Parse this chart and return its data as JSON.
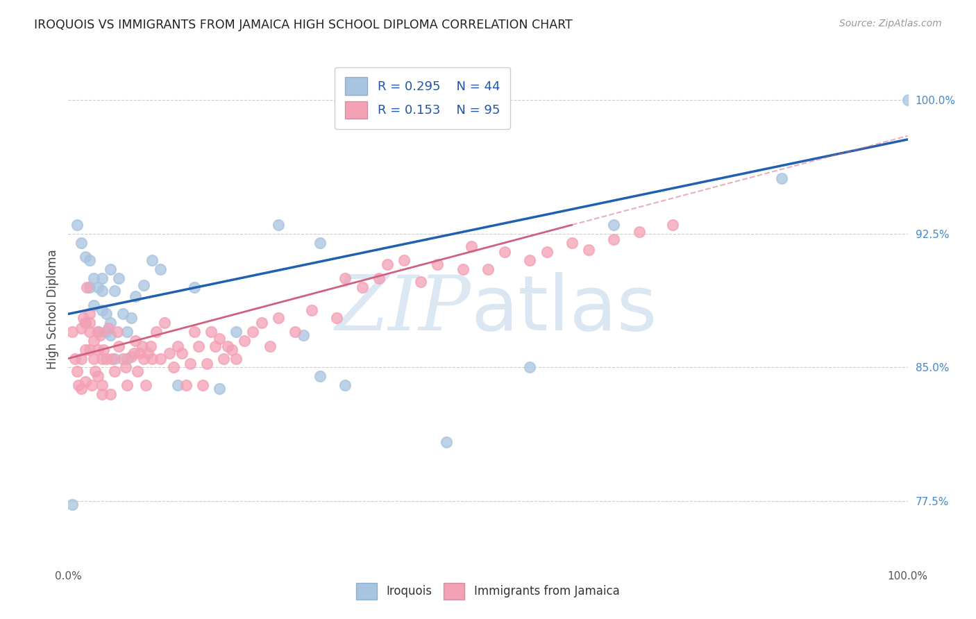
{
  "title": "IROQUOIS VS IMMIGRANTS FROM JAMAICA HIGH SCHOOL DIPLOMA CORRELATION CHART",
  "source": "Source: ZipAtlas.com",
  "ylabel": "High School Diploma",
  "right_yticks": [
    "77.5%",
    "85.0%",
    "92.5%",
    "100.0%"
  ],
  "right_ytick_vals": [
    0.775,
    0.85,
    0.925,
    1.0
  ],
  "legend_blue_r": "R = 0.295",
  "legend_blue_n": "N = 44",
  "legend_pink_r": "R = 0.153",
  "legend_pink_n": "N = 95",
  "blue_color": "#a8c4e0",
  "pink_color": "#f4a0b5",
  "blue_line_color": "#2060b0",
  "pink_line_color": "#d06080",
  "blue_scatter_x": [
    0.005,
    0.01,
    0.015,
    0.02,
    0.02,
    0.025,
    0.025,
    0.03,
    0.03,
    0.035,
    0.035,
    0.04,
    0.04,
    0.04,
    0.045,
    0.045,
    0.05,
    0.05,
    0.05,
    0.055,
    0.055,
    0.06,
    0.065,
    0.07,
    0.07,
    0.075,
    0.08,
    0.09,
    0.1,
    0.11,
    0.13,
    0.15,
    0.18,
    0.2,
    0.25,
    0.28,
    0.3,
    0.3,
    0.33,
    0.45,
    0.55,
    0.65,
    0.85,
    1.0
  ],
  "blue_scatter_y": [
    0.773,
    0.93,
    0.92,
    0.912,
    0.875,
    0.91,
    0.895,
    0.9,
    0.885,
    0.895,
    0.87,
    0.893,
    0.9,
    0.882,
    0.88,
    0.87,
    0.875,
    0.868,
    0.905,
    0.893,
    0.855,
    0.9,
    0.88,
    0.87,
    0.855,
    0.878,
    0.89,
    0.896,
    0.91,
    0.905,
    0.84,
    0.895,
    0.838,
    0.87,
    0.93,
    0.868,
    0.845,
    0.92,
    0.84,
    0.808,
    0.85,
    0.93,
    0.956,
    1.0
  ],
  "pink_scatter_x": [
    0.005,
    0.008,
    0.01,
    0.012,
    0.015,
    0.015,
    0.015,
    0.018,
    0.02,
    0.02,
    0.02,
    0.022,
    0.025,
    0.025,
    0.025,
    0.025,
    0.028,
    0.03,
    0.03,
    0.032,
    0.035,
    0.035,
    0.035,
    0.038,
    0.04,
    0.04,
    0.04,
    0.042,
    0.045,
    0.048,
    0.05,
    0.052,
    0.055,
    0.058,
    0.06,
    0.065,
    0.068,
    0.07,
    0.075,
    0.078,
    0.08,
    0.082,
    0.085,
    0.088,
    0.09,
    0.092,
    0.095,
    0.098,
    0.1,
    0.105,
    0.11,
    0.115,
    0.12,
    0.125,
    0.13,
    0.135,
    0.14,
    0.145,
    0.15,
    0.155,
    0.16,
    0.165,
    0.17,
    0.175,
    0.18,
    0.185,
    0.19,
    0.195,
    0.2,
    0.21,
    0.22,
    0.23,
    0.24,
    0.25,
    0.27,
    0.29,
    0.32,
    0.33,
    0.35,
    0.37,
    0.38,
    0.4,
    0.42,
    0.44,
    0.47,
    0.48,
    0.5,
    0.52,
    0.55,
    0.57,
    0.6,
    0.62,
    0.65,
    0.68,
    0.72
  ],
  "pink_scatter_y": [
    0.87,
    0.855,
    0.848,
    0.84,
    0.838,
    0.855,
    0.872,
    0.878,
    0.842,
    0.86,
    0.875,
    0.895,
    0.875,
    0.88,
    0.87,
    0.86,
    0.84,
    0.865,
    0.855,
    0.848,
    0.87,
    0.86,
    0.845,
    0.868,
    0.855,
    0.84,
    0.835,
    0.86,
    0.855,
    0.872,
    0.835,
    0.855,
    0.848,
    0.87,
    0.862,
    0.855,
    0.85,
    0.84,
    0.856,
    0.858,
    0.865,
    0.848,
    0.858,
    0.862,
    0.855,
    0.84,
    0.858,
    0.862,
    0.855,
    0.87,
    0.855,
    0.875,
    0.858,
    0.85,
    0.862,
    0.858,
    0.84,
    0.852,
    0.87,
    0.862,
    0.84,
    0.852,
    0.87,
    0.862,
    0.866,
    0.855,
    0.862,
    0.86,
    0.855,
    0.865,
    0.87,
    0.875,
    0.862,
    0.878,
    0.87,
    0.882,
    0.878,
    0.9,
    0.895,
    0.9,
    0.908,
    0.91,
    0.898,
    0.908,
    0.905,
    0.918,
    0.905,
    0.915,
    0.91,
    0.915,
    0.92,
    0.916,
    0.922,
    0.926,
    0.93
  ],
  "xlim": [
    0.0,
    1.0
  ],
  "ylim": [
    0.74,
    1.025
  ],
  "blue_line_x0": 0.0,
  "blue_line_x1": 1.0,
  "blue_line_y0": 0.88,
  "blue_line_y1": 0.978,
  "pink_line_x0": 0.0,
  "pink_line_x1": 0.6,
  "pink_line_y0": 0.855,
  "pink_line_y1": 0.93,
  "background_color": "#ffffff",
  "grid_color": "#cccccc",
  "watermark_zip_color": "#c5d8ee",
  "watermark_atlas_color": "#b8cfe8"
}
